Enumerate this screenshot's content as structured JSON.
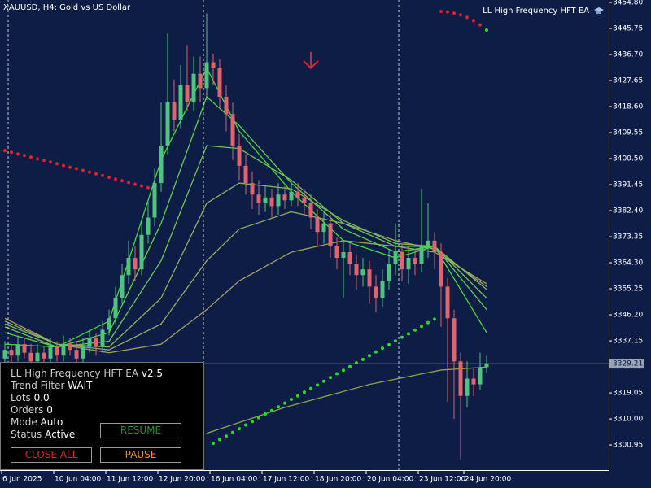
{
  "chart_data": {
    "type": "candlestick",
    "title": "XAUUSD, H4:  Gold vs US Dollar",
    "indicator_label": "LL High Frequency HFT EA",
    "up_color": "#4fc47e",
    "down_color": "#e0636e",
    "x": [
      0,
      1,
      2,
      3,
      4,
      5,
      6,
      7,
      8,
      9,
      10,
      11,
      12,
      13,
      14,
      15,
      16,
      17,
      18,
      19,
      20,
      21,
      22,
      23,
      24,
      25,
      26,
      27,
      28,
      29,
      30,
      31,
      32,
      33,
      34,
      35,
      36,
      37,
      38,
      39,
      40,
      41,
      42,
      43,
      44,
      45,
      46,
      47,
      48,
      49,
      50,
      51,
      52,
      53,
      54,
      55,
      56,
      57,
      58,
      59,
      60,
      61,
      62,
      63,
      64,
      65,
      66,
      67,
      68,
      69,
      70,
      71,
      72,
      73,
      74
    ],
    "open": [
      3331,
      3334,
      3332,
      3336,
      3333,
      3330,
      3333,
      3331,
      3335,
      3332,
      3336,
      3334,
      3331,
      3335,
      3338,
      3335,
      3341,
      3345,
      3352,
      3360,
      3366,
      3362,
      3374,
      3380,
      3392,
      3405,
      3420,
      3414,
      3426,
      3420,
      3430,
      3425,
      3434,
      3432,
      3422,
      3416,
      3405,
      3398,
      3392,
      3388,
      3385,
      3387,
      3384,
      3388,
      3386,
      3389,
      3387,
      3385,
      3380,
      3375,
      3378,
      3370,
      3366,
      3368,
      3364,
      3360,
      3362,
      3356,
      3352,
      3358,
      3364,
      3368,
      3362,
      3366,
      3364,
      3370,
      3372,
      3368,
      3356,
      3345,
      3330,
      3318,
      3324,
      3322,
      3328
    ],
    "high": [
      3337,
      3336,
      3339,
      3338,
      3336,
      3336,
      3335,
      3338,
      3337,
      3339,
      3338,
      3337,
      3338,
      3341,
      3340,
      3344,
      3348,
      3356,
      3364,
      3372,
      3370,
      3379,
      3386,
      3397,
      3420,
      3444,
      3428,
      3433,
      3440,
      3436,
      3436,
      3451,
      3437,
      3435,
      3426,
      3420,
      3409,
      3402,
      3396,
      3393,
      3391,
      3390,
      3392,
      3391,
      3393,
      3392,
      3390,
      3388,
      3383,
      3382,
      3381,
      3373,
      3372,
      3371,
      3367,
      3366,
      3365,
      3360,
      3362,
      3369,
      3378,
      3371,
      3370,
      3369,
      3390,
      3385,
      3375,
      3371,
      3359,
      3348,
      3333,
      3330,
      3328,
      3333,
      3332
    ],
    "low": [
      3328,
      3329,
      3330,
      3331,
      3327,
      3328,
      3329,
      3329,
      3330,
      3330,
      3332,
      3329,
      3329,
      3333,
      3332,
      3333,
      3339,
      3343,
      3350,
      3357,
      3358,
      3360,
      3371,
      3377,
      3389,
      3402,
      3410,
      3411,
      3417,
      3417,
      3420,
      3421,
      3426,
      3418,
      3410,
      3400,
      3393,
      3388,
      3383,
      3381,
      3382,
      3380,
      3381,
      3383,
      3384,
      3384,
      3381,
      3376,
      3370,
      3371,
      3366,
      3362,
      3352,
      3360,
      3355,
      3356,
      3350,
      3347,
      3349,
      3355,
      3360,
      3358,
      3357,
      3360,
      3361,
      3366,
      3362,
      3342,
      3316,
      3310,
      3296,
      3314,
      3318,
      3320,
      3326
    ],
    "close": [
      3334,
      3332,
      3336,
      3333,
      3330,
      3333,
      3331,
      3335,
      3332,
      3336,
      3334,
      3331,
      3335,
      3338,
      3335,
      3341,
      3345,
      3352,
      3360,
      3366,
      3362,
      3374,
      3380,
      3392,
      3405,
      3420,
      3414,
      3426,
      3420,
      3430,
      3425,
      3434,
      3432,
      3422,
      3416,
      3405,
      3398,
      3392,
      3388,
      3385,
      3387,
      3384,
      3388,
      3386,
      3389,
      3387,
      3385,
      3380,
      3375,
      3378,
      3370,
      3366,
      3368,
      3364,
      3360,
      3362,
      3356,
      3352,
      3358,
      3364,
      3368,
      3362,
      3366,
      3364,
      3370,
      3372,
      3368,
      3356,
      3345,
      3330,
      3318,
      3324,
      3322,
      3328,
      3329.21
    ],
    "last_price": 3329.21,
    "xlim": [
      -0.75,
      92.75
    ],
    "xticks": [
      {
        "value": 0,
        "label": "6 Jun 2025"
      },
      {
        "value": 8,
        "label": "10 Jun 04:00"
      },
      {
        "value": 16,
        "label": "11 Jun 12:00"
      },
      {
        "value": 24,
        "label": "12 Jun 20:00"
      },
      {
        "value": 32,
        "label": "16 Jun 04:00"
      },
      {
        "value": 40,
        "label": "17 Jun 12:00"
      },
      {
        "value": 48,
        "label": "18 Jun 20:00"
      },
      {
        "value": 56,
        "label": "20 Jun 04:00"
      },
      {
        "value": 64,
        "label": "23 Jun 12:00"
      },
      {
        "value": 71,
        "label": "24 Jun 20:00"
      }
    ],
    "ylim": [
      3292.2,
      3455.65
    ],
    "yticks": [
      {
        "value": 3454.8,
        "label": "3454.80"
      },
      {
        "value": 3445.75,
        "label": "3445.75"
      },
      {
        "value": 3436.7,
        "label": "3436.70"
      },
      {
        "value": 3427.65,
        "label": "3427.65"
      },
      {
        "value": 3418.6,
        "label": "3418.60"
      },
      {
        "value": 3409.55,
        "label": "3409.55"
      },
      {
        "value": 3400.5,
        "label": "3400.50"
      },
      {
        "value": 3391.45,
        "label": "3391.45"
      },
      {
        "value": 3382.4,
        "label": "3382.40"
      },
      {
        "value": 3373.35,
        "label": "3373.35"
      },
      {
        "value": 3364.3,
        "label": "3364.30"
      },
      {
        "value": 3355.25,
        "label": "3355.25"
      },
      {
        "value": 3346.2,
        "label": "3346.20"
      },
      {
        "value": 3337.15,
        "label": "3337.15"
      },
      {
        "value": 3319.05,
        "label": "3319.05"
      },
      {
        "value": 3310,
        "label": "3310.00"
      },
      {
        "value": 3300.95,
        "label": "3300.95"
      }
    ],
    "overlays": [
      {
        "type": "line",
        "color": "#a4a062",
        "x": [
          0,
          8,
          16,
          24,
          31,
          36,
          44,
          52,
          60,
          66,
          74
        ],
        "values": [
          3345,
          3336,
          3333,
          3336,
          3348,
          3358,
          3368,
          3372,
          3370,
          3368,
          3357
        ]
      },
      {
        "type": "line",
        "color": "#96aa5e",
        "x": [
          0,
          8,
          16,
          24,
          31,
          36,
          44,
          52,
          60,
          66,
          74
        ],
        "values": [
          3344,
          3336,
          3334,
          3343,
          3365,
          3376,
          3382,
          3378,
          3372,
          3369,
          3356
        ]
      },
      {
        "type": "line",
        "color": "#86b65c",
        "x": [
          0,
          8,
          16,
          24,
          31,
          36,
          44,
          52,
          60,
          66,
          74
        ],
        "values": [
          3343,
          3336,
          3335,
          3352,
          3385,
          3392,
          3390,
          3379,
          3371,
          3370,
          3355
        ]
      },
      {
        "type": "line",
        "color": "#74c255",
        "x": [
          0,
          8,
          16,
          24,
          31,
          36,
          44,
          52,
          60,
          66,
          74
        ],
        "values": [
          3342,
          3335,
          3337,
          3365,
          3405,
          3404,
          3393,
          3378,
          3370,
          3370,
          3352
        ]
      },
      {
        "type": "line",
        "color": "#5ccf4a",
        "x": [
          0,
          8,
          16,
          24,
          31,
          36,
          44,
          52,
          60,
          66,
          74
        ],
        "values": [
          3340,
          3335,
          3340,
          3378,
          3422,
          3412,
          3392,
          3376,
          3368,
          3370,
          3348
        ]
      },
      {
        "type": "line",
        "color": "#3ddc3d",
        "x": [
          0,
          8,
          16,
          24,
          31,
          36,
          44,
          52,
          60,
          66,
          74
        ],
        "values": [
          3336,
          3335,
          3344,
          3400,
          3432,
          3410,
          3389,
          3372,
          3366,
          3370,
          3340
        ]
      },
      {
        "type": "line",
        "color": "#8fa24a",
        "x": [
          31,
          43,
          56,
          67,
          74
        ],
        "values": [
          3305,
          3314,
          3322,
          3327,
          3328
        ]
      },
      {
        "type": "dots",
        "color": "#e0202a",
        "x": [
          0,
          1,
          2,
          3,
          4,
          5,
          6,
          7,
          8,
          9,
          10,
          11,
          12,
          13,
          14,
          15,
          16,
          17,
          18,
          19,
          20,
          21,
          22
        ],
        "values": [
          3403.3,
          3402.7,
          3402.1,
          3401.6,
          3401.0,
          3400.4,
          3399.9,
          3399.3,
          3398.7,
          3398.1,
          3397.5,
          3397.0,
          3396.4,
          3395.8,
          3395.2,
          3394.6,
          3394.0,
          3393.4,
          3392.8,
          3392.2,
          3391.6,
          3391.0,
          3390.4
        ]
      },
      {
        "type": "dots",
        "color": "#22e022",
        "x": [
          32,
          33,
          34,
          35,
          36,
          37,
          38,
          39,
          40,
          41,
          42,
          43,
          44,
          45,
          46,
          47,
          48,
          49,
          50,
          51,
          52,
          53,
          54,
          55,
          56,
          57,
          58,
          59,
          60,
          61,
          62,
          63,
          64,
          65,
          66
        ],
        "values": [
          3301.5,
          3302.8,
          3304.0,
          3305.3,
          3306.6,
          3307.9,
          3309.1,
          3310.4,
          3311.7,
          3312.9,
          3314.2,
          3315.5,
          3316.8,
          3318.0,
          3319.3,
          3320.6,
          3321.8,
          3323.1,
          3324.4,
          3325.7,
          3326.9,
          3328.2,
          3329.5,
          3330.7,
          3332.0,
          3333.3,
          3334.6,
          3335.8,
          3337.1,
          3338.4,
          3339.6,
          3340.9,
          3342.2,
          3343.5,
          3344.7
        ]
      },
      {
        "type": "dots",
        "color": "#e0202a",
        "x": [
          67,
          68,
          69,
          70,
          71,
          72,
          73
        ],
        "values": [
          3451.7,
          3451.5,
          3451.1,
          3450.5,
          3449.6,
          3448.5,
          3447.0
        ]
      },
      {
        "type": "dots",
        "color": "#22e022",
        "x": [
          74
        ],
        "values": [
          3445.2
        ]
      },
      {
        "type": "arrow",
        "color": "#e0202a",
        "x": [
          47
        ],
        "values": [
          3434.8
        ]
      }
    ]
  },
  "panel": {
    "title": "LL High Frequency HFT EA",
    "version": "v2.5",
    "rows": [
      {
        "label": "Trend Filter",
        "value": "WAIT"
      },
      {
        "label": "Lots",
        "value": "0.0"
      },
      {
        "label": "Orders",
        "value": "0"
      },
      {
        "label": "Mode",
        "value": "Auto"
      },
      {
        "label": "Status",
        "value": "Active"
      }
    ],
    "buttons": {
      "resume": "RESUME",
      "close_all": "CLOSE ALL",
      "pause": "PAUSE"
    }
  }
}
